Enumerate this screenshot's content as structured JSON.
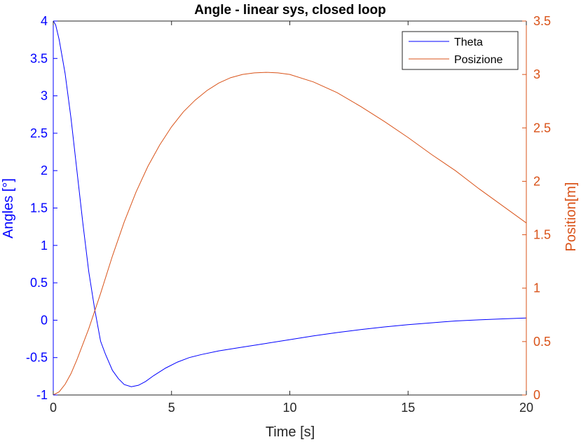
{
  "chart_data": {
    "type": "line",
    "title": "Angle - linear sys, closed loop",
    "xlabel": "Time [s]",
    "ylabel_left": "Angles [°]",
    "ylabel_right": "Position[m]",
    "xlim": [
      0,
      20
    ],
    "ylim_left": [
      -1,
      4
    ],
    "ylim_right": [
      0,
      3.5
    ],
    "x_ticks": [
      "0",
      "5",
      "10",
      "15",
      "20"
    ],
    "y_left_ticks": [
      "-1",
      "-0.5",
      "0",
      "0.5",
      "1",
      "1.5",
      "2",
      "2.5",
      "3",
      "3.5",
      "4"
    ],
    "y_right_ticks": [
      "0",
      "0.5",
      "1",
      "1.5",
      "2",
      "2.5",
      "3",
      "3.5"
    ],
    "grid": false,
    "legend_position": "top-right",
    "colors": {
      "left_axis": "#0000ff",
      "right_axis": "#d95319",
      "theta": "#0000ff",
      "posizione": "#d95319"
    },
    "series": [
      {
        "name": "Theta",
        "axis": "left",
        "x": [
          0,
          0.1,
          0.25,
          0.5,
          0.75,
          1.0,
          1.25,
          1.5,
          1.75,
          2.0,
          2.2,
          2.5,
          2.75,
          3.0,
          3.3,
          3.6,
          3.9,
          4.25,
          4.75,
          5.25,
          5.75,
          6.25,
          7,
          8,
          9,
          10,
          11,
          12,
          13,
          14,
          15,
          16,
          17,
          18,
          19,
          20
        ],
        "values": [
          4.0,
          3.95,
          3.75,
          3.3,
          2.7,
          2.0,
          1.3,
          0.65,
          0.15,
          -0.28,
          -0.45,
          -0.67,
          -0.78,
          -0.86,
          -0.89,
          -0.87,
          -0.82,
          -0.74,
          -0.64,
          -0.56,
          -0.5,
          -0.46,
          -0.41,
          -0.36,
          -0.31,
          -0.26,
          -0.21,
          -0.165,
          -0.125,
          -0.09,
          -0.06,
          -0.035,
          -0.01,
          0.005,
          0.018,
          0.03
        ]
      },
      {
        "name": "Posizione",
        "axis": "right",
        "x": [
          0,
          0.25,
          0.5,
          0.75,
          1.0,
          1.5,
          2.0,
          2.5,
          3.0,
          3.5,
          4,
          4.5,
          5,
          5.5,
          6,
          6.5,
          7,
          7.5,
          8,
          8.5,
          9,
          9.5,
          10,
          11,
          12,
          13,
          14,
          15,
          16,
          17,
          18,
          19,
          20
        ],
        "values": [
          0,
          0.03,
          0.1,
          0.2,
          0.33,
          0.62,
          0.95,
          1.3,
          1.62,
          1.9,
          2.14,
          2.34,
          2.51,
          2.65,
          2.76,
          2.85,
          2.92,
          2.97,
          3.0,
          3.015,
          3.02,
          3.015,
          3.0,
          2.93,
          2.83,
          2.7,
          2.56,
          2.41,
          2.25,
          2.1,
          1.93,
          1.77,
          1.61
        ]
      }
    ]
  }
}
